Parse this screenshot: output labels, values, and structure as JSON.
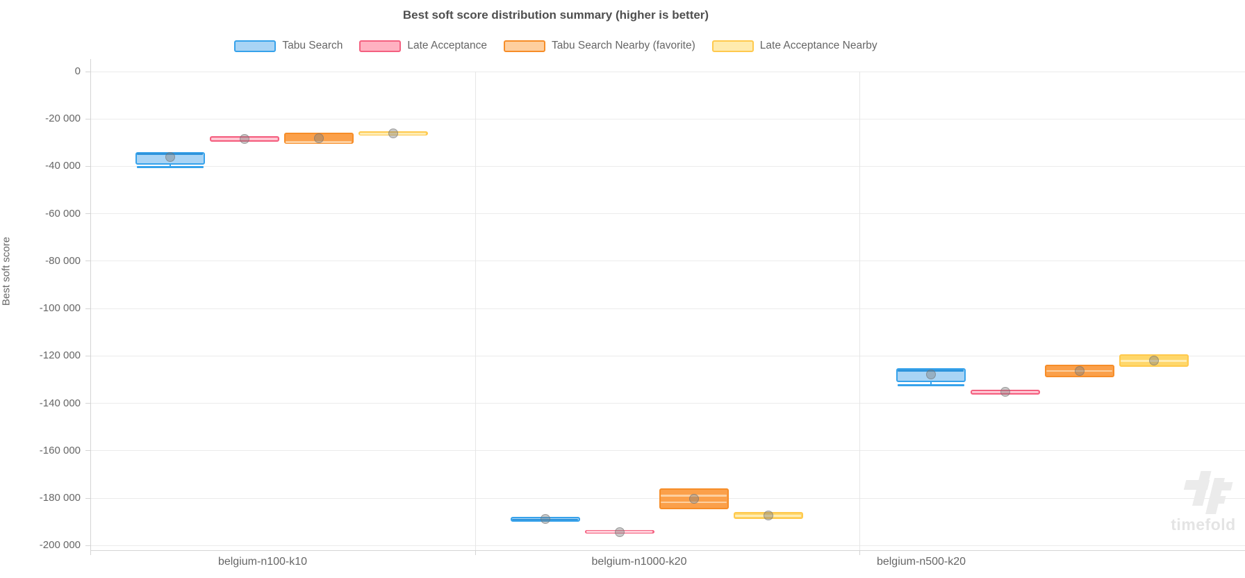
{
  "chart_data": {
    "type": "boxplot",
    "title": "Best soft score distribution summary (higher is better)",
    "ylabel": "Best soft score",
    "ylim": [
      -200000,
      0
    ],
    "grid": true,
    "legend_position": "top",
    "yticks": [
      {
        "value": 0,
        "label": "0"
      },
      {
        "value": -20000,
        "label": "-20 000"
      },
      {
        "value": -40000,
        "label": "-40 000"
      },
      {
        "value": -60000,
        "label": "-60 000"
      },
      {
        "value": -80000,
        "label": "-80 000"
      },
      {
        "value": -100000,
        "label": "-100 000"
      },
      {
        "value": -120000,
        "label": "-120 000"
      },
      {
        "value": -140000,
        "label": "-140 000"
      },
      {
        "value": -160000,
        "label": "-160 000"
      },
      {
        "value": -180000,
        "label": "-180 000"
      },
      {
        "value": -200000,
        "label": "-200 000"
      }
    ],
    "categories": [
      "belgium-n100-k10",
      "belgium-n1000-k20",
      "belgium-n500-k20"
    ],
    "series": [
      {
        "name": "Tabu Search",
        "colors": {
          "border": "#36A2EB",
          "fill": "#A9D4F5",
          "legend_fill": "#A9D4F5",
          "median": "#2E94DC"
        },
        "boxes": [
          {
            "min": -40300,
            "q1": -39200,
            "median": -34700,
            "q3": -34000,
            "mean": -36200
          },
          {
            "q1": -190000,
            "median": -189000,
            "q3": -187900,
            "mean": -188900
          },
          {
            "min": -132300,
            "q1": -131100,
            "median": -126200,
            "q3": -125200,
            "mean": -127900
          }
        ]
      },
      {
        "name": "Late Acceptance",
        "colors": {
          "border": "#F46080",
          "fill": "#FFB1C1",
          "legend_fill": "#FFB1C1",
          "median": "#FFCFDA"
        },
        "boxes": [
          {
            "q1": -29600,
            "median": -28500,
            "q3": -27200,
            "mean": -28400
          },
          {
            "q1": -194900,
            "median": -194200,
            "q3": -193600,
            "mean": -194300
          },
          {
            "q1": -136200,
            "median": -135200,
            "q3": -134200,
            "mean": -135200
          }
        ]
      },
      {
        "name": "Tabu Search Nearby (favorite)",
        "colors": {
          "border": "#F68D28",
          "fill": "#FBA04A",
          "legend_fill": "#FECF9F",
          "median": "#FDD0A0"
        },
        "boxes": [
          {
            "q1": -30400,
            "median": -29800,
            "q3": -25900,
            "mean": -28000
          },
          {
            "q1": -184700,
            "median": -178900,
            "q3": -175900,
            "mean": -180400,
            "extra_line": -181700
          },
          {
            "q1": -128900,
            "median": -126400,
            "q3": -123700,
            "mean": -126300
          }
        ]
      },
      {
        "name": "Late Acceptance Nearby",
        "colors": {
          "border": "#FFC94D",
          "fill": "#FFD76A",
          "legend_fill": "#FFEBAE",
          "median": "#FFEDB4"
        },
        "boxes": [
          {
            "q1": -27000,
            "median": -26300,
            "q3": -25200,
            "mean": -26100
          },
          {
            "q1": -188900,
            "median": -187400,
            "q3": -185900,
            "mean": -187300
          },
          {
            "q1": -124500,
            "median": -122100,
            "q3": -119400,
            "mean": -121800
          }
        ]
      }
    ]
  },
  "watermark": {
    "text": "timefold"
  }
}
